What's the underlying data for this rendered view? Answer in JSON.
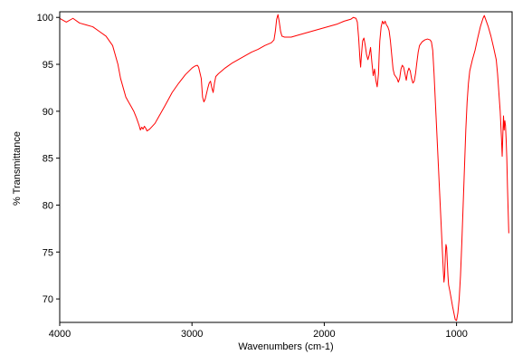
{
  "chart_data": {
    "type": "line",
    "title": "",
    "xlabel": "Wavenumbers (cm-1)",
    "ylabel": "% Transmittance",
    "xlim": [
      4000,
      580
    ],
    "ylim": [
      67.5,
      100.6
    ],
    "x_reversed": true,
    "x_ticks": [
      4000,
      3000,
      2000,
      1000
    ],
    "y_ticks": [
      70,
      75,
      80,
      85,
      90,
      95,
      100
    ],
    "grid": false,
    "legend": "none",
    "series": [
      {
        "color": "#ff0000",
        "points": [
          [
            4000,
            99.9
          ],
          [
            3950,
            99.5
          ],
          [
            3900,
            99.9
          ],
          [
            3850,
            99.4
          ],
          [
            3800,
            99.2
          ],
          [
            3750,
            99.0
          ],
          [
            3700,
            98.5
          ],
          [
            3650,
            98.0
          ],
          [
            3600,
            97.0
          ],
          [
            3580,
            96.0
          ],
          [
            3560,
            95.0
          ],
          [
            3540,
            93.5
          ],
          [
            3520,
            92.5
          ],
          [
            3500,
            91.5
          ],
          [
            3480,
            91.0
          ],
          [
            3460,
            90.5
          ],
          [
            3440,
            90.0
          ],
          [
            3420,
            89.3
          ],
          [
            3400,
            88.5
          ],
          [
            3390,
            88.0
          ],
          [
            3380,
            88.3
          ],
          [
            3370,
            88.1
          ],
          [
            3360,
            88.4
          ],
          [
            3350,
            88.2
          ],
          [
            3340,
            87.9
          ],
          [
            3320,
            88.1
          ],
          [
            3300,
            88.4
          ],
          [
            3280,
            88.7
          ],
          [
            3260,
            89.2
          ],
          [
            3240,
            89.7
          ],
          [
            3200,
            90.7
          ],
          [
            3150,
            92.0
          ],
          [
            3100,
            93.0
          ],
          [
            3050,
            93.9
          ],
          [
            3000,
            94.6
          ],
          [
            2980,
            94.8
          ],
          [
            2960,
            94.9
          ],
          [
            2950,
            94.7
          ],
          [
            2930,
            93.5
          ],
          [
            2920,
            91.5
          ],
          [
            2910,
            91.0
          ],
          [
            2900,
            91.3
          ],
          [
            2880,
            92.5
          ],
          [
            2870,
            93.0
          ],
          [
            2860,
            93.2
          ],
          [
            2850,
            92.5
          ],
          [
            2840,
            92.0
          ],
          [
            2830,
            93.0
          ],
          [
            2820,
            93.7
          ],
          [
            2800,
            94.0
          ],
          [
            2750,
            94.6
          ],
          [
            2700,
            95.1
          ],
          [
            2650,
            95.5
          ],
          [
            2600,
            95.9
          ],
          [
            2550,
            96.3
          ],
          [
            2500,
            96.6
          ],
          [
            2450,
            97.0
          ],
          [
            2400,
            97.3
          ],
          [
            2380,
            97.6
          ],
          [
            2370,
            98.5
          ],
          [
            2360,
            99.8
          ],
          [
            2350,
            100.3
          ],
          [
            2340,
            99.5
          ],
          [
            2330,
            98.5
          ],
          [
            2320,
            98.0
          ],
          [
            2300,
            97.9
          ],
          [
            2250,
            97.9
          ],
          [
            2200,
            98.1
          ],
          [
            2100,
            98.5
          ],
          [
            2000,
            98.9
          ],
          [
            1900,
            99.3
          ],
          [
            1850,
            99.6
          ],
          [
            1800,
            99.8
          ],
          [
            1780,
            100.0
          ],
          [
            1760,
            99.9
          ],
          [
            1750,
            99.5
          ],
          [
            1740,
            97.8
          ],
          [
            1730,
            95.5
          ],
          [
            1725,
            94.7
          ],
          [
            1720,
            95.8
          ],
          [
            1710,
            97.5
          ],
          [
            1700,
            97.8
          ],
          [
            1690,
            97.0
          ],
          [
            1680,
            96.0
          ],
          [
            1670,
            95.5
          ],
          [
            1660,
            96.0
          ],
          [
            1650,
            96.8
          ],
          [
            1640,
            95.2
          ],
          [
            1630,
            93.8
          ],
          [
            1620,
            94.5
          ],
          [
            1610,
            93.3
          ],
          [
            1600,
            92.6
          ],
          [
            1590,
            94.0
          ],
          [
            1585,
            96.0
          ],
          [
            1580,
            97.5
          ],
          [
            1570,
            99.0
          ],
          [
            1560,
            99.6
          ],
          [
            1550,
            99.3
          ],
          [
            1540,
            99.6
          ],
          [
            1530,
            99.2
          ],
          [
            1520,
            99.0
          ],
          [
            1510,
            98.6
          ],
          [
            1500,
            97.5
          ],
          [
            1490,
            96.0
          ],
          [
            1480,
            94.5
          ],
          [
            1470,
            93.9
          ],
          [
            1460,
            93.7
          ],
          [
            1450,
            93.5
          ],
          [
            1440,
            93.1
          ],
          [
            1430,
            93.5
          ],
          [
            1420,
            94.5
          ],
          [
            1410,
            94.9
          ],
          [
            1400,
            94.7
          ],
          [
            1390,
            94.0
          ],
          [
            1380,
            93.3
          ],
          [
            1370,
            94.2
          ],
          [
            1360,
            94.6
          ],
          [
            1350,
            94.3
          ],
          [
            1340,
            93.5
          ],
          [
            1330,
            93.0
          ],
          [
            1320,
            93.2
          ],
          [
            1310,
            94.0
          ],
          [
            1300,
            95.2
          ],
          [
            1290,
            96.3
          ],
          [
            1280,
            97.0
          ],
          [
            1260,
            97.4
          ],
          [
            1240,
            97.6
          ],
          [
            1220,
            97.7
          ],
          [
            1200,
            97.6
          ],
          [
            1190,
            97.4
          ],
          [
            1180,
            96.5
          ],
          [
            1170,
            94.0
          ],
          [
            1160,
            91.0
          ],
          [
            1150,
            88.0
          ],
          [
            1140,
            85.0
          ],
          [
            1130,
            82.0
          ],
          [
            1120,
            79.0
          ],
          [
            1110,
            76.0
          ],
          [
            1100,
            73.0
          ],
          [
            1095,
            71.8
          ],
          [
            1090,
            72.5
          ],
          [
            1085,
            74.5
          ],
          [
            1080,
            75.8
          ],
          [
            1075,
            75.5
          ],
          [
            1070,
            74.0
          ],
          [
            1065,
            72.5
          ],
          [
            1060,
            71.5
          ],
          [
            1050,
            70.8
          ],
          [
            1040,
            70.0
          ],
          [
            1030,
            69.2
          ],
          [
            1020,
            68.5
          ],
          [
            1010,
            67.8
          ],
          [
            1000,
            67.7
          ],
          [
            990,
            68.5
          ],
          [
            980,
            70.0
          ],
          [
            970,
            72.5
          ],
          [
            960,
            76.0
          ],
          [
            950,
            80.0
          ],
          [
            940,
            84.0
          ],
          [
            930,
            88.0
          ],
          [
            920,
            91.0
          ],
          [
            910,
            93.0
          ],
          [
            900,
            94.3
          ],
          [
            880,
            95.5
          ],
          [
            860,
            96.5
          ],
          [
            840,
            97.8
          ],
          [
            820,
            99.0
          ],
          [
            800,
            99.9
          ],
          [
            790,
            100.2
          ],
          [
            780,
            99.8
          ],
          [
            760,
            99.0
          ],
          [
            740,
            98.0
          ],
          [
            720,
            96.8
          ],
          [
            700,
            95.5
          ],
          [
            690,
            94.0
          ],
          [
            680,
            92.0
          ],
          [
            670,
            90.0
          ],
          [
            660,
            87.0
          ],
          [
            655,
            85.2
          ],
          [
            650,
            87.5
          ],
          [
            645,
            89.5
          ],
          [
            640,
            88.0
          ],
          [
            635,
            89.0
          ],
          [
            630,
            88.5
          ],
          [
            625,
            87.0
          ],
          [
            620,
            85.0
          ],
          [
            615,
            82.0
          ],
          [
            610,
            79.5
          ],
          [
            605,
            77.0
          ]
        ]
      }
    ]
  }
}
